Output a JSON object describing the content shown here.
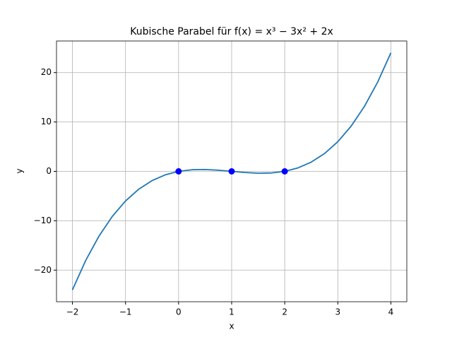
{
  "chart_data": {
    "type": "line",
    "title": "Kubische Parabel für f(x) = x³ − 3x² + 2x",
    "x_label": "x",
    "y_label": "y",
    "xlim": [
      -2.3,
      4.3
    ],
    "ylim": [
      -26.4,
      26.4
    ],
    "xticks": [
      {
        "value": -2,
        "label": "−2"
      },
      {
        "value": -1,
        "label": "−1"
      },
      0,
      1,
      2,
      3,
      4
    ],
    "yticks": [
      {
        "value": -20,
        "label": "−20"
      },
      {
        "value": -10,
        "label": "−10"
      },
      0,
      10,
      20
    ],
    "grid": true,
    "series": [
      {
        "color": "#1f77b4",
        "style": "line",
        "x": [
          -2,
          -1.75,
          -1.5,
          -1.25,
          -1,
          -0.75,
          -0.5,
          -0.25,
          0,
          0.25,
          0.5,
          0.75,
          1,
          1.25,
          1.5,
          1.75,
          2,
          2.25,
          2.5,
          2.75,
          3,
          3.25,
          3.5,
          3.75,
          4
        ],
        "values": [
          -24,
          -18.046875,
          -13.125,
          -9.140625,
          -6,
          -3.609375,
          -1.875,
          -0.703125,
          0,
          0.328125,
          0.375,
          0.234375,
          0,
          -0.234375,
          -0.375,
          -0.328125,
          0,
          0.703125,
          1.875,
          3.609375,
          6,
          9.140625,
          13.125,
          18.046875,
          24
        ]
      },
      {
        "color": "#0000ff",
        "style": "points",
        "x": [
          0,
          1,
          2
        ],
        "values": [
          0,
          0,
          0
        ]
      }
    ]
  }
}
